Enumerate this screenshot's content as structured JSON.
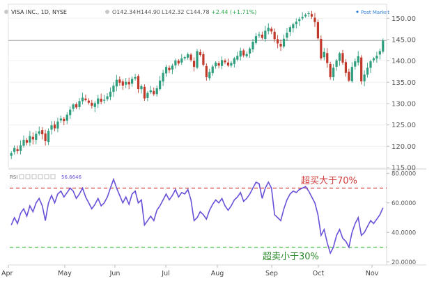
{
  "header": {
    "symbol": "VISA INC., 1D, NYSE",
    "open": "O142.34",
    "high": "H144.90",
    "low": "L142.32",
    "close": "C144.78",
    "change": "+2.44 (+1.71%)",
    "post_market": "Post Market"
  },
  "colors": {
    "up": "#2e9e7e",
    "down": "#c0392b",
    "rsi_line": "#6a4fd8",
    "overbought": "#d03a3a",
    "oversold": "#4cbb4c"
  },
  "chart_data": [
    {
      "type": "candlestick",
      "ylim": [
        115,
        152
      ],
      "yticks": [
        "150.00",
        "145.00",
        "140.00",
        "135.00",
        "130.00",
        "125.00",
        "120.00",
        "115.00"
      ],
      "x_months": [
        "Apr",
        "May",
        "Jun",
        "Jul",
        "Aug",
        "Sep",
        "Oct",
        "Nov"
      ],
      "price_line": 144.78,
      "closes": [
        118.4,
        119.6,
        118.9,
        120.2,
        121.5,
        120.8,
        122.4,
        121.6,
        122.9,
        123.5,
        122.8,
        121.2,
        123.6,
        124.9,
        124.2,
        125.8,
        126.5,
        125.9,
        127.4,
        128.6,
        129.8,
        129.1,
        130.6,
        131.4,
        130.8,
        130.2,
        129.5,
        130.1,
        131.2,
        130.4,
        130.9,
        131.7,
        132.8,
        134.2,
        135.6,
        134.9,
        134.2,
        135.1,
        134.5,
        135.8,
        136.2,
        133.4,
        134.1,
        131.2,
        132.5,
        133.1,
        132.2,
        133.6,
        135.4,
        137.2,
        138.6,
        137.8,
        138.9,
        140.1,
        139.4,
        140.6,
        140.9,
        141.6,
        140.2,
        138.6,
        142.3,
        141.4,
        139.1,
        136.2,
        137.4,
        138.7,
        139.6,
        138.9,
        140.2,
        139.7,
        138.9,
        139.5,
        140.6,
        141.2,
        142.4,
        141.3,
        141.6,
        142.9,
        144.5,
        145.8,
        146.2,
        145.4,
        147.1,
        147.8,
        146.9,
        145.1,
        144.1,
        143.4,
        145.2,
        146.6,
        147.9,
        148.6,
        149.2,
        149.8,
        150.3,
        150.8,
        151.2,
        150.4,
        149.1,
        145.3,
        140.6,
        142.1,
        139.5,
        136.2,
        138.4,
        140.1,
        141.8,
        139.6,
        137.2,
        135.4,
        138.6,
        139.9,
        141.1,
        135.2,
        136.8,
        138.4,
        139.9,
        140.6,
        141.2,
        142.3,
        144.78
      ],
      "rsi": {
        "label": "RSI",
        "last_value": "56.6646",
        "ylim": [
          18,
          82
        ],
        "yticks": [
          "80.0000",
          "60.0000",
          "40.0000",
          "20.0000"
        ],
        "overbought": 70,
        "oversold": 30,
        "values": [
          45,
          50,
          46,
          53,
          56,
          51,
          58,
          54,
          60,
          63,
          58,
          48,
          60,
          65,
          60,
          66,
          68,
          64,
          67,
          70,
          68,
          63,
          66,
          70,
          64,
          60,
          56,
          59,
          63,
          58,
          60,
          64,
          70,
          76,
          70,
          65,
          60,
          64,
          59,
          66,
          68,
          60,
          62,
          45,
          48,
          51,
          48,
          55,
          58,
          62,
          66,
          62,
          65,
          69,
          64,
          67,
          66,
          69,
          62,
          48,
          50,
          54,
          52,
          49,
          55,
          59,
          62,
          60,
          63,
          58,
          55,
          58,
          62,
          64,
          67,
          61,
          63,
          66,
          70,
          74,
          73,
          63,
          70,
          74,
          70,
          52,
          50,
          48,
          56,
          62,
          66,
          68,
          67,
          69,
          70,
          71,
          68,
          64,
          60,
          52,
          38,
          42,
          33,
          26,
          30,
          38,
          42,
          36,
          34,
          30,
          40,
          46,
          50,
          38,
          40,
          44,
          48,
          46,
          49,
          52,
          56.66
        ]
      },
      "annotations": {
        "overbought_text": "超买大于70%",
        "oversold_text": "超卖小于30%"
      }
    }
  ]
}
